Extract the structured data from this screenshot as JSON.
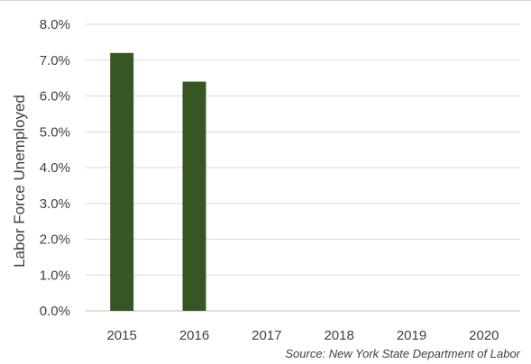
{
  "chart_data": {
    "type": "bar",
    "title": "",
    "xlabel": "",
    "ylabel": "Labor Force Unemployed",
    "categories": [
      "2015",
      "2016",
      "2017",
      "2018",
      "2019",
      "2020"
    ],
    "values": [
      7.2,
      6.4,
      null,
      null,
      null,
      null
    ],
    "y_ticks": [
      "0.0%",
      "1.0%",
      "2.0%",
      "3.0%",
      "4.0%",
      "5.0%",
      "6.0%",
      "7.0%",
      "8.0%"
    ],
    "ylim": [
      0,
      8
    ],
    "unit": "%",
    "grid": true,
    "bar_color": "#375623",
    "source": "Source: New York State Department of Labor"
  }
}
